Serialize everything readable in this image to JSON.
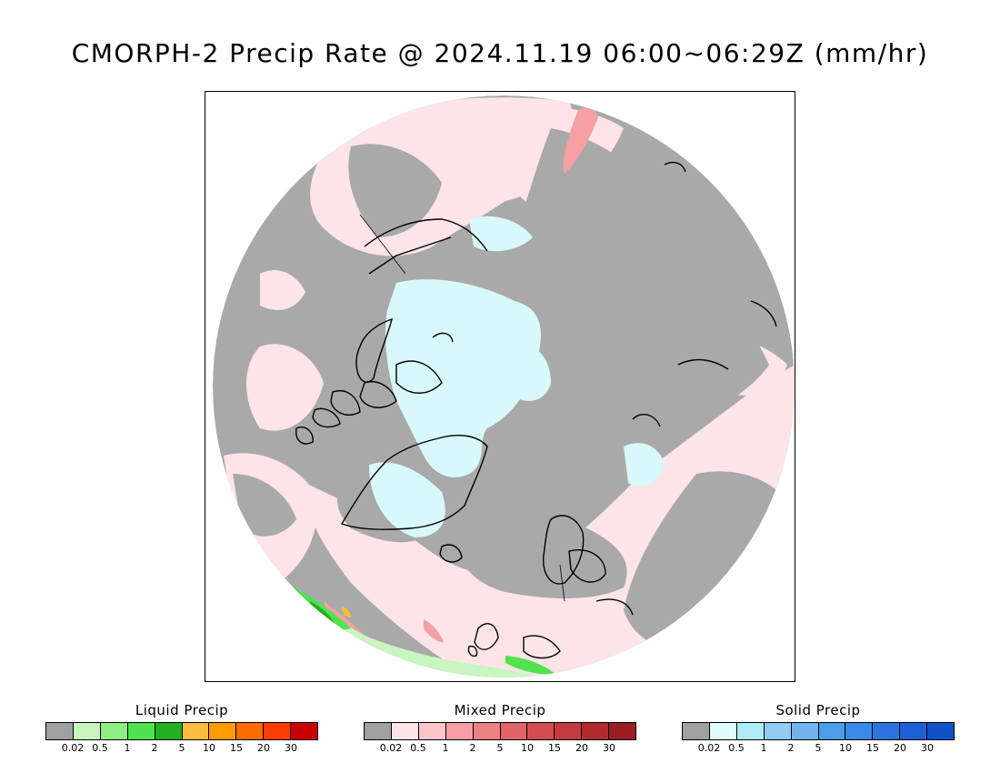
{
  "title": "CMORPH-2 Precip Rate @ 2024.11.19 06:00~06:29Z (mm/hr)",
  "map": {
    "projection": "north-polar-stereographic",
    "background_color": "#a9a9a9",
    "coastline_color": "#000000"
  },
  "legends": [
    {
      "key": "liquid",
      "title": "Liquid Precip",
      "colors": [
        "#a0a0a0",
        "#c8f5c0",
        "#90ee85",
        "#4fe44f",
        "#20b020",
        "#fcbc3c",
        "#fc9c00",
        "#fc6c00",
        "#fc3c00",
        "#c80000"
      ],
      "ticks": [
        "0.02",
        "0.5",
        "1",
        "2",
        "5",
        "10",
        "15",
        "20",
        "30"
      ]
    },
    {
      "key": "mixed",
      "title": "Mixed Precip",
      "colors": [
        "#a0a0a0",
        "#fde4e6",
        "#fbc4c8",
        "#f4a0a4",
        "#ec8084",
        "#e06468",
        "#d44c50",
        "#c43a3e",
        "#b02a2e",
        "#9a1e22"
      ],
      "ticks": [
        "0.02",
        "0.5",
        "1",
        "2",
        "5",
        "10",
        "15",
        "20",
        "30"
      ]
    },
    {
      "key": "solid",
      "title": "Solid Precip",
      "colors": [
        "#a0a0a0",
        "#e0fcfc",
        "#b0ecf8",
        "#90ccf4",
        "#70b4f0",
        "#4c9cec",
        "#3a88e8",
        "#2a74e0",
        "#1c60d8",
        "#1050c8"
      ],
      "ticks": [
        "0.02",
        "0.5",
        "1",
        "2",
        "5",
        "10",
        "15",
        "20",
        "30"
      ]
    }
  ]
}
